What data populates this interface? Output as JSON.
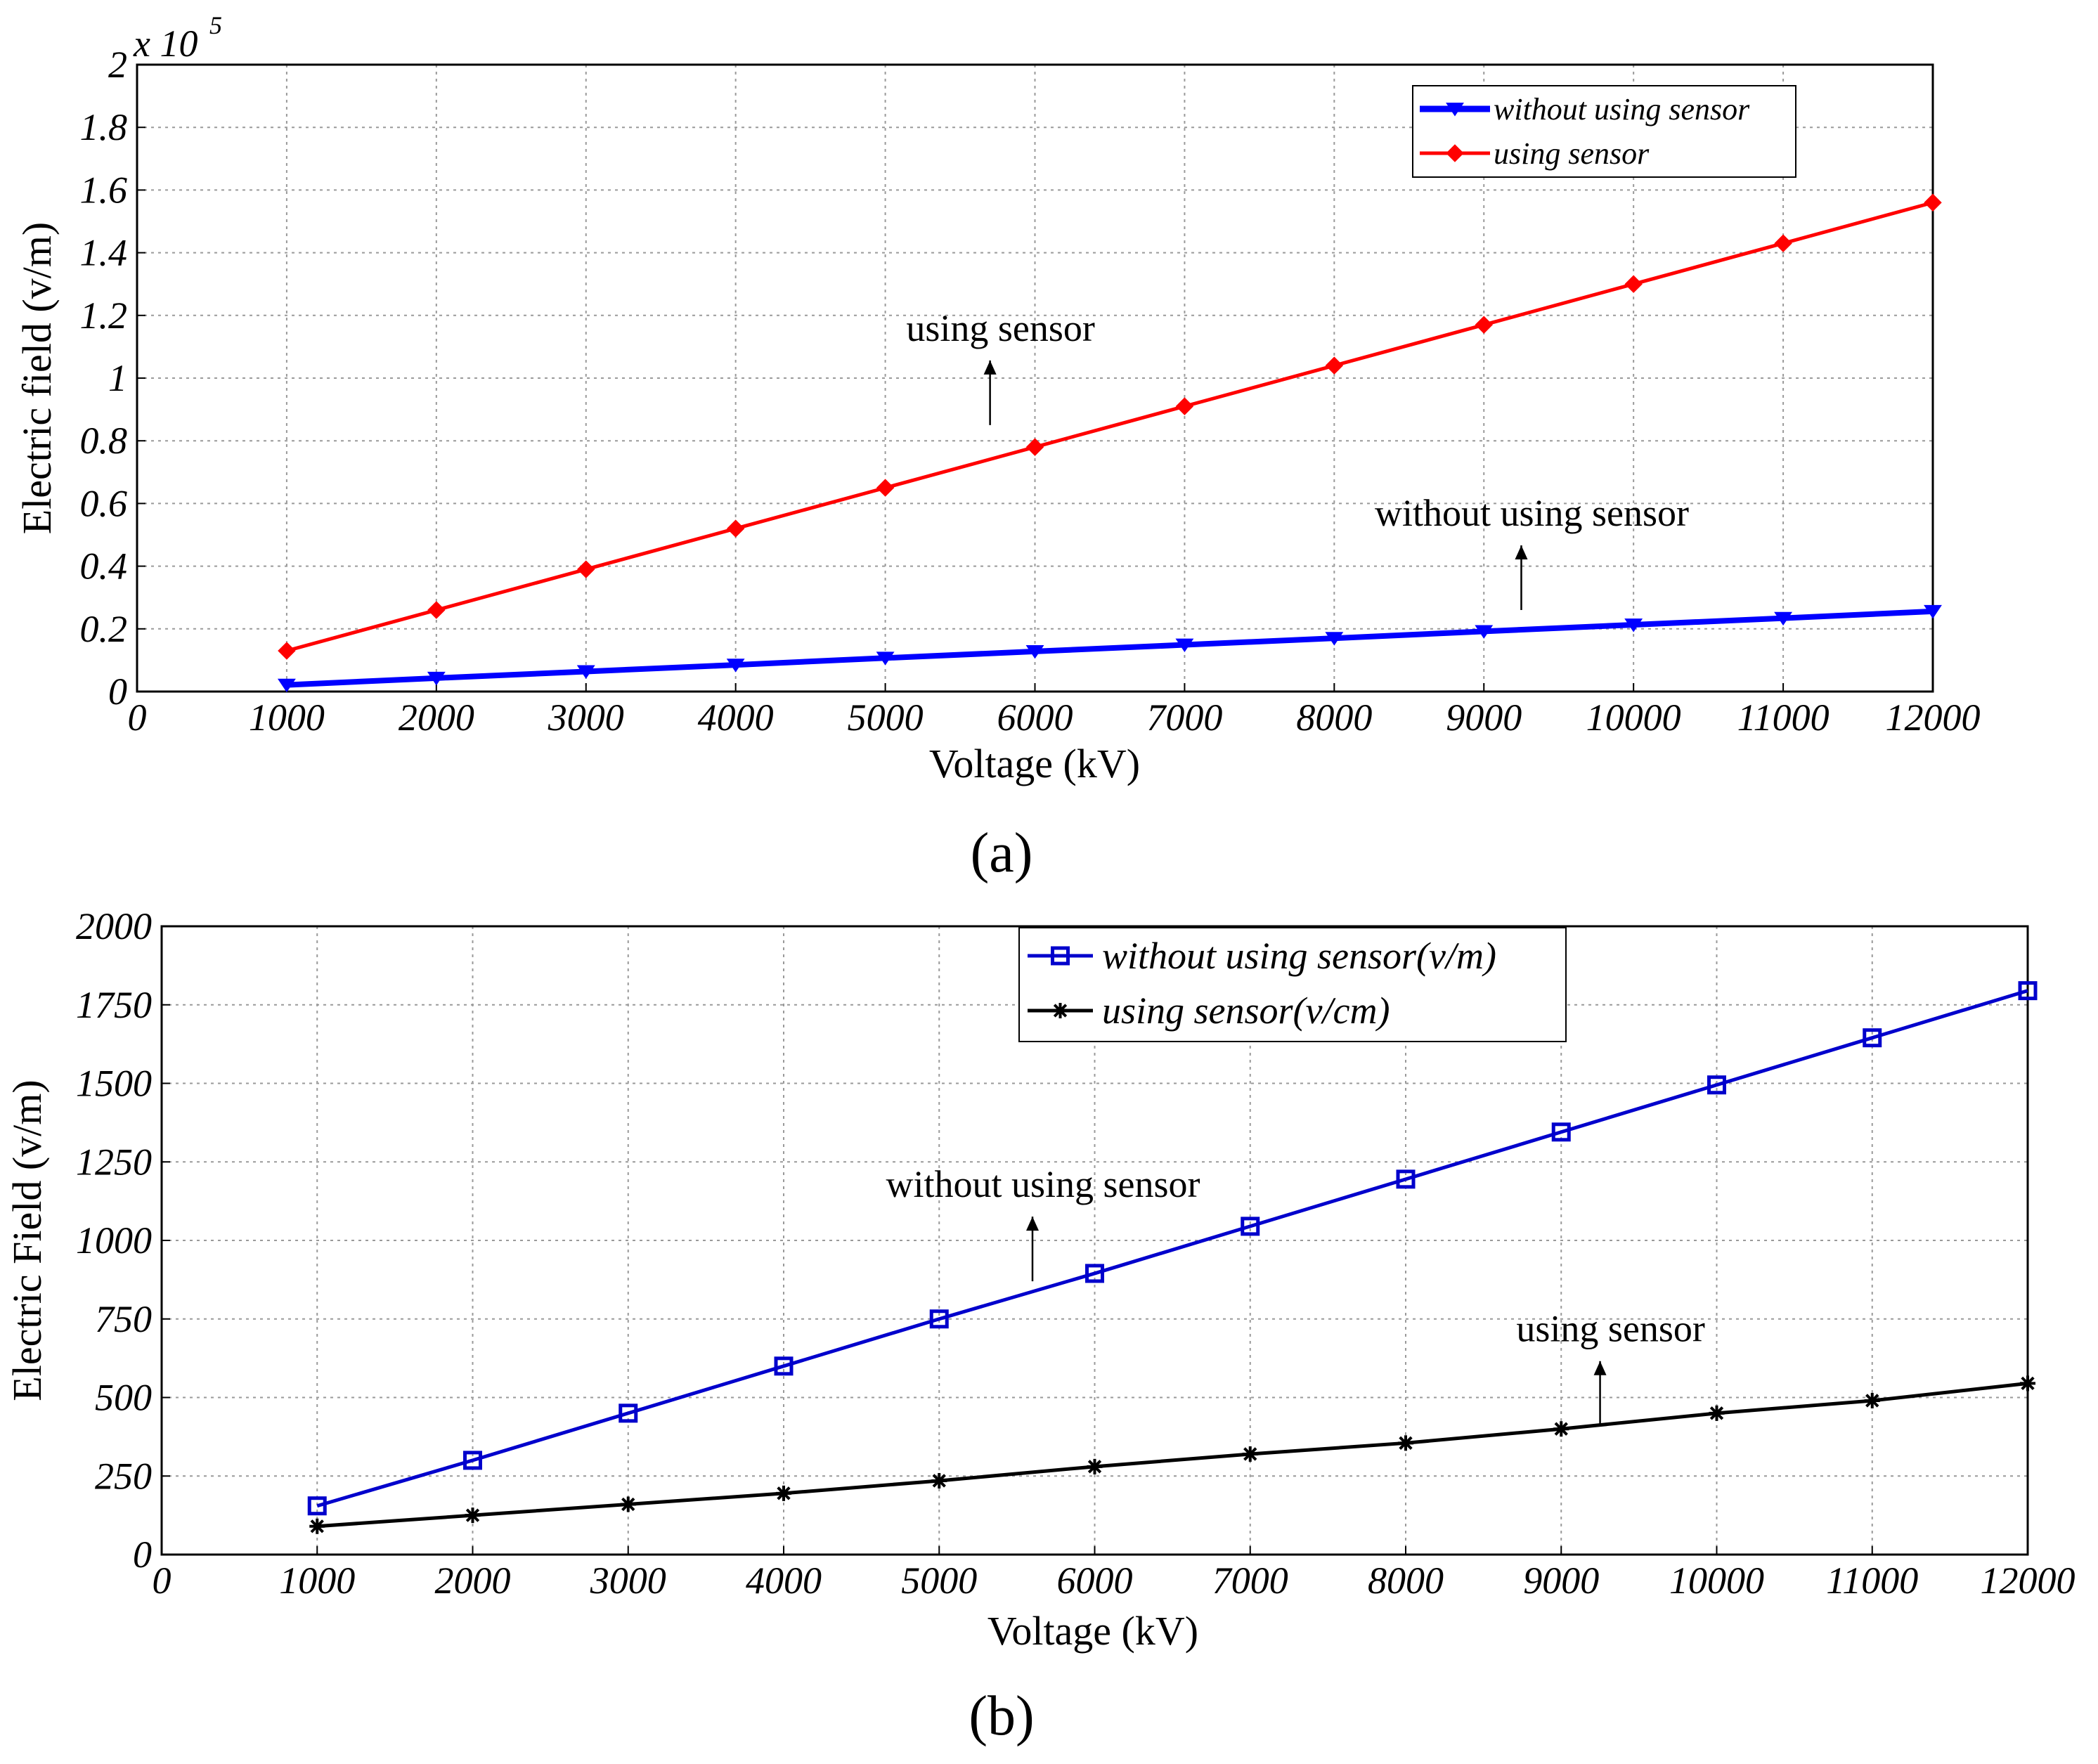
{
  "chart_data": [
    {
      "type": "line",
      "panel_label": "(a)",
      "xlabel": "Voltage (kV)",
      "ylabel": "Electric field (v/m)",
      "y_multiplier_label": "x 10",
      "y_multiplier_exponent": "5",
      "xlim": [
        0,
        12000
      ],
      "ylim": [
        0,
        2
      ],
      "xticks": [
        0,
        1000,
        2000,
        3000,
        4000,
        5000,
        6000,
        7000,
        8000,
        9000,
        10000,
        11000,
        12000
      ],
      "xtick_labels": [
        "0",
        "1000",
        "2000",
        "3000",
        "4000",
        "5000",
        "6000",
        "7000",
        "8000",
        "9000",
        "10000",
        "11000",
        "12000"
      ],
      "yticks": [
        0,
        0.2,
        0.4,
        0.6,
        0.8,
        1.0,
        1.2,
        1.4,
        1.6,
        1.8,
        2.0
      ],
      "ytick_labels": [
        "0",
        "0.2",
        "0.4",
        "0.6",
        "0.8",
        "1",
        "1.2",
        "1.4",
        "1.6",
        "1.8",
        "2"
      ],
      "grid": true,
      "legend_position": "top-right",
      "x": [
        1000,
        2000,
        3000,
        4000,
        5000,
        6000,
        7000,
        8000,
        9000,
        10000,
        11000,
        12000
      ],
      "series": [
        {
          "name": "without using sensor",
          "color": "#0000ff",
          "marker": "triangle-down",
          "values": [
            0.021,
            0.043,
            0.064,
            0.085,
            0.107,
            0.128,
            0.149,
            0.17,
            0.192,
            0.213,
            0.234,
            0.256
          ]
        },
        {
          "name": "using sensor",
          "color": "#ff0000",
          "marker": "diamond",
          "values": [
            0.13,
            0.26,
            0.39,
            0.52,
            0.65,
            0.78,
            0.91,
            1.04,
            1.17,
            1.3,
            1.43,
            1.56
          ]
        }
      ],
      "annotations": [
        {
          "text": "using sensor",
          "x": 5700,
          "y": 0.85
        },
        {
          "text": "without using sensor",
          "x": 9250,
          "y": 0.26
        }
      ]
    },
    {
      "type": "line",
      "panel_label": "(b)",
      "xlabel": "Voltage (kV)",
      "ylabel": "Electric Field (v/m)",
      "xlim": [
        0,
        12000
      ],
      "ylim": [
        0,
        2000
      ],
      "xticks": [
        0,
        1000,
        2000,
        3000,
        4000,
        5000,
        6000,
        7000,
        8000,
        9000,
        10000,
        11000,
        12000
      ],
      "xtick_labels": [
        "0",
        "1000",
        "2000",
        "3000",
        "4000",
        "5000",
        "6000",
        "7000",
        "8000",
        "9000",
        "10000",
        "11000",
        "12000"
      ],
      "yticks": [
        0,
        250,
        500,
        750,
        1000,
        1250,
        1500,
        1750,
        2000
      ],
      "ytick_labels": [
        "0",
        "250",
        "500",
        "750",
        "1000",
        "1250",
        "1500",
        "1750",
        "2000"
      ],
      "grid": true,
      "legend_position": "top-right",
      "x": [
        1000,
        2000,
        3000,
        4000,
        5000,
        6000,
        7000,
        8000,
        9000,
        10000,
        11000,
        12000
      ],
      "series": [
        {
          "name": "without using sensor(v/m)",
          "color": "#0000cc",
          "marker": "square",
          "values": [
            155,
            300,
            450,
            600,
            750,
            895,
            1045,
            1195,
            1345,
            1495,
            1645,
            1795
          ]
        },
        {
          "name": "using sensor(v/cm)",
          "color": "#000000",
          "marker": "star",
          "values": [
            90,
            125,
            160,
            195,
            235,
            280,
            320,
            355,
            400,
            450,
            490,
            545
          ]
        }
      ],
      "annotations": [
        {
          "text": "without using sensor",
          "x": 5600,
          "y": 870
        },
        {
          "text": "using sensor",
          "x": 9250,
          "y": 410
        }
      ]
    }
  ]
}
